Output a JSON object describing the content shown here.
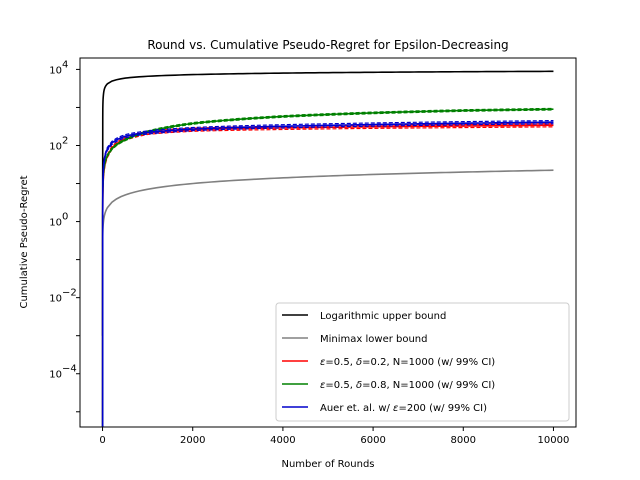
{
  "chart_data": {
    "type": "line",
    "title": "Round vs. Cumulative Pseudo-Regret for Epsilon-Decreasing",
    "xlabel": "Number of Rounds",
    "ylabel": "Cumulative Pseudo-Regret",
    "xlim": [
      -500,
      10500
    ],
    "ylim_log10": [
      -5.4,
      4.3
    ],
    "y_scale": "log",
    "x_ticks": [
      0,
      2000,
      4000,
      6000,
      8000,
      10000
    ],
    "x_tick_labels": [
      "0",
      "2000",
      "4000",
      "6000",
      "8000",
      "10000"
    ],
    "y_ticks_exp": [
      -4,
      -2,
      0,
      2,
      4
    ],
    "y_tick_labels": [
      "10",
      "10",
      "10",
      "10",
      "10"
    ],
    "y_tick_exponents": [
      "−4",
      "−2",
      "0",
      "2",
      "4"
    ],
    "legend_position": "lower right",
    "series": [
      {
        "name": "Logarithmic upper bound",
        "color": "#000000",
        "x": [
          1,
          5,
          10,
          20,
          30,
          50,
          100,
          200,
          500,
          1000,
          2000,
          4000,
          6000,
          8000,
          10000
        ],
        "y": [
          0.001,
          800,
          1500,
          2200,
          2700,
          3300,
          4100,
          4900,
          5900,
          6600,
          7300,
          8000,
          8400,
          8700,
          8900
        ]
      },
      {
        "name": "Minimax lower bound",
        "color": "#808080",
        "x": [
          1,
          3,
          5,
          10,
          20,
          50,
          100,
          200,
          500,
          1000,
          2000,
          4000,
          6000,
          8000,
          10000
        ],
        "y": [
          0.22,
          0.38,
          0.5,
          0.7,
          1.0,
          1.58,
          2.24,
          3.16,
          5.0,
          7.07,
          10.0,
          14.1,
          17.3,
          20.0,
          22.4
        ]
      },
      {
        "name": "$\\varepsilon$=0.5, $\\delta$=0.2, N=1000 (w/ 99% CI)",
        "label_parts": [
          "ε",
          "=0.5, ",
          "δ",
          "=0.2, N=1000 (w/ 99% CI)"
        ],
        "color": "#ff0000",
        "x": [
          1,
          3,
          5,
          10,
          20,
          50,
          100,
          200,
          500,
          1000,
          2000,
          4000,
          6000,
          8000,
          10000
        ],
        "y": [
          1e-06,
          1,
          3,
          8,
          15,
          30,
          50,
          85,
          150,
          215,
          260,
          290,
          310,
          325,
          340
        ],
        "ci_half_width_factor": 1.1
      },
      {
        "name": "$\\varepsilon$=0.5, $\\delta$=0.8, N=1000 (w/ 99% CI)",
        "label_parts": [
          "ε",
          "=0.5, ",
          "δ",
          "=0.8, N=1000 (w/ 99% CI)"
        ],
        "color": "#008000",
        "x": [
          1,
          3,
          5,
          10,
          20,
          50,
          100,
          200,
          500,
          1000,
          2000,
          4000,
          6000,
          8000,
          10000
        ],
        "y": [
          1e-06,
          1.5,
          4,
          10,
          18,
          33,
          52,
          80,
          140,
          230,
          380,
          580,
          720,
          830,
          900
        ],
        "ci_half_width_factor": 1.05
      },
      {
        "name": "Auer et. al. w/ $\\varepsilon$=200 (w/ 99% CI)",
        "label_parts": [
          "Auer et. al. w/ ",
          "ε",
          "=200 (w/ 99% CI)",
          ""
        ],
        "color": "#0000cc",
        "x": [
          1,
          3,
          5,
          10,
          20,
          50,
          100,
          200,
          500,
          1000,
          2000,
          4000,
          6000,
          8000,
          10000
        ],
        "y": [
          1e-06,
          1,
          4,
          12,
          25,
          50,
          78,
          115,
          175,
          220,
          270,
          320,
          355,
          385,
          410
        ],
        "ci_half_width_factor": 1.1
      }
    ]
  }
}
